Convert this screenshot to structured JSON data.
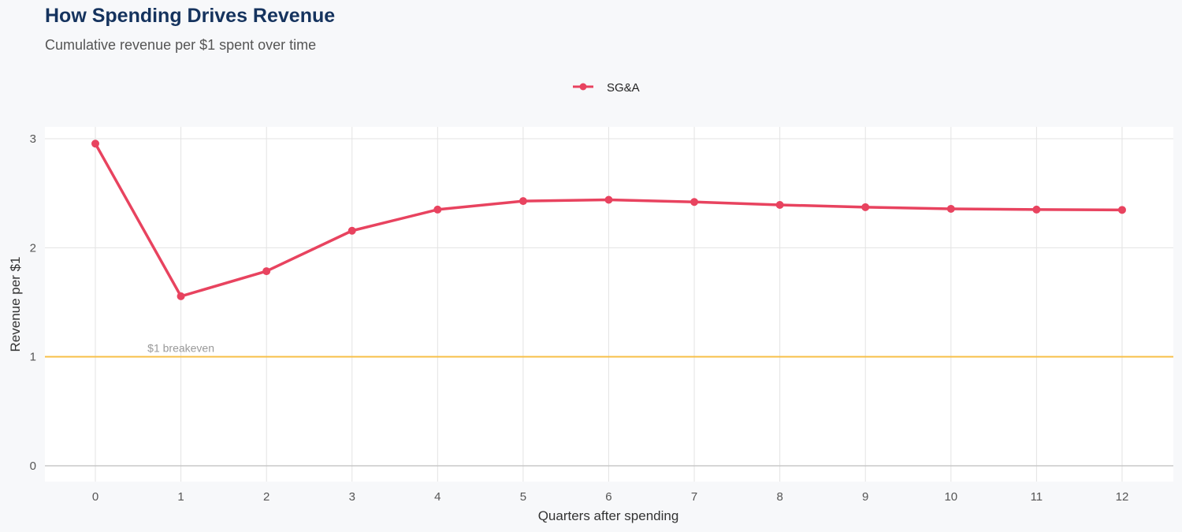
{
  "title": "How Spending Drives Revenue",
  "subtitle": "Cumulative revenue per $1 spent over time",
  "chart_data": {
    "type": "line",
    "title": "How Spending Drives Revenue",
    "subtitle": "Cumulative revenue per $1 spent over time",
    "xlabel": "Quarters after spending",
    "ylabel": "Revenue per $1",
    "x": [
      0,
      1,
      2,
      3,
      4,
      5,
      6,
      7,
      8,
      9,
      10,
      11,
      12
    ],
    "series": [
      {
        "name": "SG&A",
        "color": "#e8435f",
        "values": [
          2.955,
          1.555,
          1.785,
          2.156,
          2.35,
          2.428,
          2.44,
          2.42,
          2.393,
          2.372,
          2.357,
          2.35,
          2.347
        ]
      }
    ],
    "xticks": [
      "0",
      "1",
      "2",
      "3",
      "4",
      "5",
      "6",
      "7",
      "8",
      "9",
      "10",
      "11",
      "12"
    ],
    "yticks": [
      "0",
      "1",
      "2",
      "3"
    ],
    "ylim": [
      -0.15,
      3.1
    ],
    "xlim": [
      -0.55,
      12.55
    ],
    "grid": true,
    "legend": "top-center",
    "reference_line": {
      "y": 1,
      "label": "$1 breakeven",
      "color": "#f7c04a"
    }
  }
}
